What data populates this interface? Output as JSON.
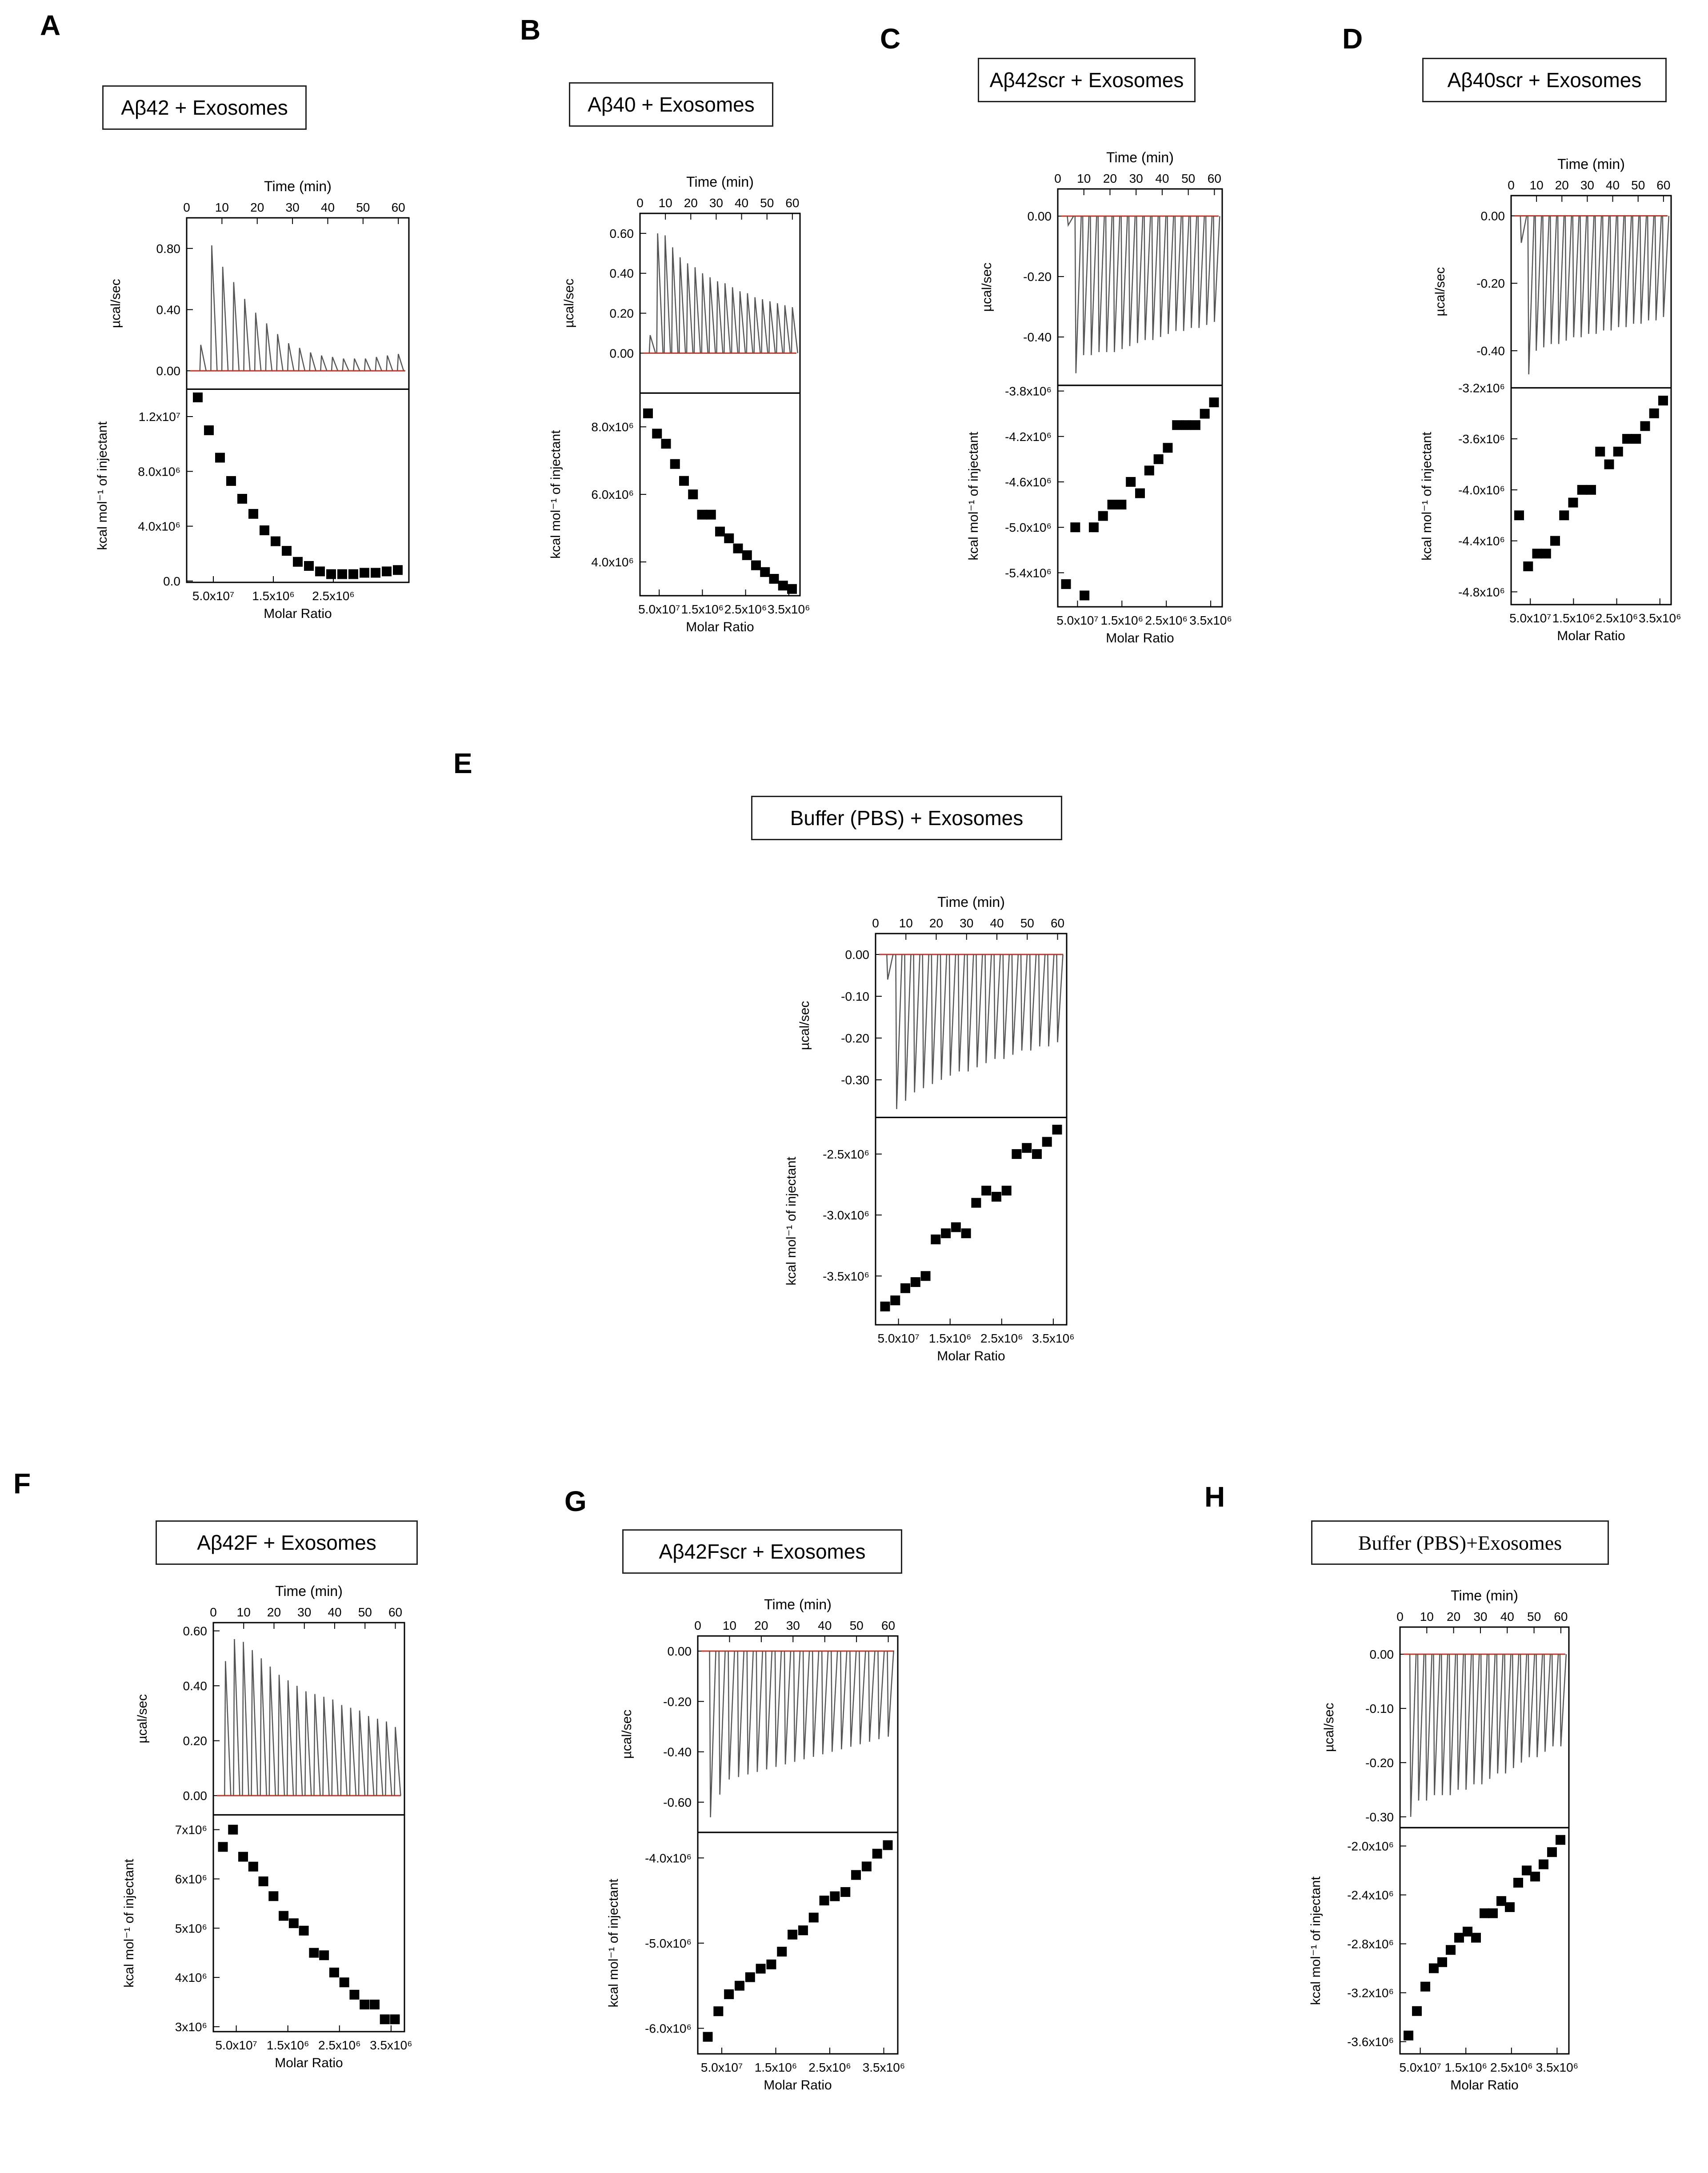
{
  "chart_data": [
    {
      "type": "scatter",
      "letter": "A",
      "title": "Aβ42 + Exosomes",
      "time_label": "Time (min)",
      "time_ticks": [
        "0",
        "10",
        "20",
        "30",
        "40",
        "50",
        "60"
      ],
      "raw_ylabel": "µcal/sec",
      "raw_ylim": [
        -0.12,
        1.0
      ],
      "raw_ticks": [
        0.0,
        0.4,
        0.8
      ],
      "raw_tick_labels": [
        "0.00",
        "0.40",
        "0.80"
      ],
      "raw_peaks": [
        0.17,
        0.82,
        0.68,
        0.58,
        0.47,
        0.38,
        0.31,
        0.24,
        0.18,
        0.15,
        0.12,
        0.1,
        0.09,
        0.08,
        0.08,
        0.08,
        0.09,
        0.1,
        0.11
      ],
      "xlabel": "Molar Ratio",
      "x_tick_labels": [
        "5.0x10⁷",
        "1.5x10⁶",
        "2.5x10⁶"
      ],
      "ylabel": "kcal mol⁻¹ of injectant",
      "ylim": [
        -100000,
        14000000
      ],
      "y_ticks": [
        0,
        4000000,
        8000000,
        12000000
      ],
      "y_tick_labels": [
        "0.0",
        "4.0x10⁶",
        "8.0x10⁶",
        "1.2x10⁷"
      ],
      "values": [
        13400000,
        11000000,
        9000000,
        7300000,
        6000000,
        4900000,
        3700000,
        2900000,
        2200000,
        1400000,
        1100000,
        700000,
        500000,
        500000,
        500000,
        600000,
        600000,
        700000,
        800000
      ]
    },
    {
      "type": "scatter",
      "letter": "B",
      "title": "Aβ40 + Exosomes",
      "time_label": "Time (min)",
      "time_ticks": [
        "0",
        "10",
        "20",
        "30",
        "40",
        "50",
        "60"
      ],
      "raw_ylabel": "µcal/sec",
      "raw_ylim": [
        -0.2,
        0.7
      ],
      "raw_ticks": [
        0.0,
        0.2,
        0.4,
        0.6
      ],
      "raw_tick_labels": [
        "0.00",
        "0.20",
        "0.40",
        "0.60"
      ],
      "raw_peaks": [
        0.09,
        0.6,
        0.59,
        0.53,
        0.48,
        0.45,
        0.43,
        0.4,
        0.38,
        0.36,
        0.35,
        0.33,
        0.31,
        0.3,
        0.28,
        0.27,
        0.26,
        0.25,
        0.24,
        0.23
      ],
      "xlabel": "Molar Ratio",
      "x_tick_labels": [
        "5.0x10⁷",
        "1.5x10⁶",
        "2.5x10⁶",
        "3.5x10⁶"
      ],
      "ylabel": "kcal mol⁻¹ of injectant",
      "ylim": [
        3000000,
        9000000
      ],
      "y_ticks": [
        4000000,
        6000000,
        8000000
      ],
      "y_tick_labels": [
        "4.0x10⁶",
        "6.0x10⁶",
        "8.0x10⁶"
      ],
      "values": [
        8400000,
        7800000,
        7500000,
        6900000,
        6400000,
        6000000,
        5400000,
        5400000,
        4900000,
        4700000,
        4400000,
        4200000,
        3900000,
        3700000,
        3500000,
        3300000,
        3200000
      ]
    },
    {
      "type": "scatter",
      "letter": "C",
      "title": "Aβ42scr + Exosomes",
      "time_label": "Time (min)",
      "time_ticks": [
        "0",
        "10",
        "20",
        "30",
        "40",
        "50",
        "60"
      ],
      "raw_ylabel": "µcal/sec",
      "raw_ylim": [
        -0.56,
        0.09
      ],
      "raw_ticks": [
        0.0,
        -0.2,
        -0.4
      ],
      "raw_tick_labels": [
        "0.00",
        "-0.20",
        "-0.40"
      ],
      "raw_peaks": [
        -0.03,
        -0.52,
        -0.46,
        -0.46,
        -0.45,
        -0.45,
        -0.45,
        -0.44,
        -0.43,
        -0.42,
        -0.41,
        -0.41,
        -0.4,
        -0.39,
        -0.38,
        -0.38,
        -0.37,
        -0.37,
        -0.36,
        -0.35
      ],
      "xlabel": "Molar Ratio",
      "x_tick_labels": [
        "5.0x10⁷",
        "1.5x10⁶",
        "2.5x10⁶",
        "3.5x10⁶"
      ],
      "ylabel": "kcal mol⁻¹ of injectant",
      "ylim": [
        -5700000,
        -3750000
      ],
      "y_ticks": [
        -5400000,
        -5000000,
        -4600000,
        -4200000,
        -3800000
      ],
      "y_tick_labels": [
        "-5.4x10⁶",
        "-5.0x10⁶",
        "-4.6x10⁶",
        "-4.2x10⁶",
        "-3.8x10⁶"
      ],
      "values": [
        -5500000,
        -5000000,
        -5600000,
        -5000000,
        -4900000,
        -4800000,
        -4800000,
        -4600000,
        -4700000,
        -4500000,
        -4400000,
        -4300000,
        -4100000,
        -4100000,
        -4100000,
        -4000000,
        -3900000
      ]
    },
    {
      "type": "scatter",
      "letter": "D",
      "title": "Aβ40scr + Exosomes",
      "time_label": "Time (min)",
      "time_ticks": [
        "0",
        "10",
        "20",
        "30",
        "40",
        "50",
        "60"
      ],
      "raw_ylabel": "µcal/sec",
      "raw_ylim": [
        -0.51,
        0.06
      ],
      "raw_ticks": [
        0.0,
        -0.2,
        -0.4
      ],
      "raw_tick_labels": [
        "0.00",
        "-0.20",
        "-0.40"
      ],
      "raw_peaks": [
        -0.08,
        -0.47,
        -0.4,
        -0.39,
        -0.38,
        -0.38,
        -0.37,
        -0.36,
        -0.36,
        -0.35,
        -0.35,
        -0.34,
        -0.34,
        -0.33,
        -0.33,
        -0.32,
        -0.32,
        -0.31,
        -0.31,
        -0.3
      ],
      "xlabel": "Molar Ratio",
      "x_tick_labels": [
        "5.0x10⁷",
        "1.5x10⁶",
        "2.5x10⁶",
        "3.5x10⁶"
      ],
      "ylabel": "kcal mol⁻¹ of injectant",
      "ylim": [
        -4900000,
        -3200000
      ],
      "y_ticks": [
        -4800000,
        -4400000,
        -4000000,
        -3600000,
        -3200000
      ],
      "y_tick_labels": [
        "-4.8x10⁶",
        "-4.4x10⁶",
        "-4.0x10⁶",
        "-3.6x10⁶",
        "-3.2x10⁶"
      ],
      "values": [
        -4200000,
        -4600000,
        -4500000,
        -4500000,
        -4400000,
        -4200000,
        -4100000,
        -4000000,
        -4000000,
        -3700000,
        -3800000,
        -3700000,
        -3600000,
        -3600000,
        -3500000,
        -3400000,
        -3300000
      ]
    },
    {
      "type": "scatter",
      "letter": "E",
      "title": "Buffer (PBS) + Exosomes",
      "time_label": "Time (min)",
      "time_ticks": [
        "0",
        "10",
        "20",
        "30",
        "40",
        "50",
        "60"
      ],
      "raw_ylabel": "µcal/sec",
      "raw_ylim": [
        -0.39,
        0.05
      ],
      "raw_ticks": [
        0.0,
        -0.1,
        -0.2,
        -0.3
      ],
      "raw_tick_labels": [
        "0.00",
        "-0.10",
        "-0.20",
        "-0.30"
      ],
      "raw_peaks": [
        -0.06,
        -0.37,
        -0.35,
        -0.33,
        -0.32,
        -0.31,
        -0.3,
        -0.29,
        -0.28,
        -0.28,
        -0.27,
        -0.26,
        -0.25,
        -0.25,
        -0.24,
        -0.23,
        -0.23,
        -0.22,
        -0.22,
        -0.21
      ],
      "xlabel": "Molar Ratio",
      "x_tick_labels": [
        "5.0x10⁷",
        "1.5x10⁶",
        "2.5x10⁶",
        "3.5x10⁶"
      ],
      "ylabel": "kcal mol⁻¹ of injectant",
      "ylim": [
        -3900000,
        -2200000
      ],
      "y_ticks": [
        -3500000,
        -3000000,
        -2500000
      ],
      "y_tick_labels": [
        "-3.5x10⁶",
        "-3.0x10⁶",
        "-2.5x10⁶"
      ],
      "values": [
        -3750000,
        -3700000,
        -3600000,
        -3550000,
        -3500000,
        -3200000,
        -3150000,
        -3100000,
        -3150000,
        -2900000,
        -2800000,
        -2850000,
        -2800000,
        -2500000,
        -2450000,
        -2500000,
        -2400000,
        -2300000
      ]
    },
    {
      "type": "scatter",
      "letter": "F",
      "title": "Aβ42F + Exosomes",
      "time_label": "Time (min)",
      "time_ticks": [
        "0",
        "10",
        "20",
        "30",
        "40",
        "50",
        "60"
      ],
      "raw_ylabel": "µcal/sec",
      "raw_ylim": [
        -0.07,
        0.63
      ],
      "raw_ticks": [
        0.0,
        0.2,
        0.4,
        0.6
      ],
      "raw_tick_labels": [
        "0.00",
        "0.20",
        "0.40",
        "0.60"
      ],
      "raw_peaks": [
        0.49,
        0.57,
        0.56,
        0.53,
        0.5,
        0.47,
        0.44,
        0.42,
        0.4,
        0.38,
        0.37,
        0.36,
        0.35,
        0.33,
        0.32,
        0.31,
        0.29,
        0.28,
        0.27,
        0.25
      ],
      "xlabel": "Molar Ratio",
      "x_tick_labels": [
        "5.0x10⁷",
        "1.5x10⁶",
        "2.5x10⁶",
        "3.5x10⁶"
      ],
      "ylabel": "kcal mol⁻¹ of injectant",
      "ylim": [
        2900000,
        7300000
      ],
      "y_ticks": [
        3000000,
        4000000,
        5000000,
        6000000,
        7000000
      ],
      "y_tick_labels": [
        "3x10⁶",
        "4x10⁶",
        "5x10⁶",
        "6x10⁶",
        "7x10⁶"
      ],
      "values": [
        6650000,
        7000000,
        6450000,
        6250000,
        5950000,
        5650000,
        5250000,
        5100000,
        4950000,
        4500000,
        4450000,
        4100000,
        3900000,
        3650000,
        3450000,
        3450000,
        3150000,
        3150000
      ]
    },
    {
      "type": "scatter",
      "letter": "G",
      "title": "Aβ42Fscr + Exosomes",
      "time_label": "Time (min)",
      "time_ticks": [
        "0",
        "10",
        "20",
        "30",
        "40",
        "50",
        "60"
      ],
      "raw_ylabel": "µcal/sec",
      "raw_ylim": [
        -0.72,
        0.06
      ],
      "raw_ticks": [
        0.0,
        -0.2,
        -0.4,
        -0.6
      ],
      "raw_tick_labels": [
        "0.00",
        "-0.20",
        "-0.40",
        "-0.60"
      ],
      "raw_peaks": [
        -0.66,
        -0.57,
        -0.51,
        -0.5,
        -0.49,
        -0.48,
        -0.47,
        -0.46,
        -0.45,
        -0.44,
        -0.43,
        -0.42,
        -0.41,
        -0.4,
        -0.39,
        -0.38,
        -0.37,
        -0.36,
        -0.35,
        -0.34
      ],
      "xlabel": "Molar Ratio",
      "x_tick_labels": [
        "5.0x10⁷",
        "1.5x10⁶",
        "2.5x10⁶",
        "3.5x10⁶"
      ],
      "ylabel": "kcal mol⁻¹ of injectant",
      "ylim": [
        -6300000,
        -3700000
      ],
      "y_ticks": [
        -6000000,
        -5000000,
        -4000000
      ],
      "y_tick_labels": [
        "-6.0x10⁶",
        "-5.0x10⁶",
        "-4.0x10⁶"
      ],
      "values": [
        -6100000,
        -5800000,
        -5600000,
        -5500000,
        -5400000,
        -5300000,
        -5250000,
        -5100000,
        -4900000,
        -4850000,
        -4700000,
        -4500000,
        -4450000,
        -4400000,
        -4200000,
        -4100000,
        -3950000,
        -3850000
      ]
    },
    {
      "type": "scatter",
      "letter": "H",
      "title": "Buffer (PBS)+Exosomes",
      "time_label": "Time (min)",
      "time_ticks": [
        "0",
        "10",
        "20",
        "30",
        "40",
        "50",
        "60"
      ],
      "raw_ylabel": "µcal/sec",
      "raw_ylim": [
        -0.32,
        0.05
      ],
      "raw_ticks": [
        0.0,
        -0.1,
        -0.2,
        -0.3
      ],
      "raw_tick_labels": [
        "0.00",
        "-0.10",
        "-0.20",
        "-0.30"
      ],
      "raw_peaks": [
        -0.3,
        -0.27,
        -0.27,
        -0.26,
        -0.26,
        -0.26,
        -0.25,
        -0.25,
        -0.24,
        -0.24,
        -0.23,
        -0.22,
        -0.22,
        -0.21,
        -0.2,
        -0.19,
        -0.19,
        -0.18,
        -0.17,
        -0.17
      ],
      "xlabel": "Molar Ratio",
      "x_tick_labels": [
        "5.0x10⁷",
        "1.5x10⁶",
        "2.5x10⁶",
        "3.5x10⁶"
      ],
      "ylabel": "kcal mol⁻¹ of injectant",
      "ylim": [
        -3700000,
        -1850000
      ],
      "y_ticks": [
        -3600000,
        -3200000,
        -2800000,
        -2400000,
        -2000000
      ],
      "y_tick_labels": [
        "-3.6x10⁶",
        "-3.2x10⁶",
        "-2.8x10⁶",
        "-2.4x10⁶",
        "-2.0x10⁶"
      ],
      "values": [
        -3550000,
        -3350000,
        -3150000,
        -3000000,
        -2950000,
        -2850000,
        -2750000,
        -2700000,
        -2750000,
        -2550000,
        -2550000,
        -2450000,
        -2500000,
        -2300000,
        -2200000,
        -2250000,
        -2150000,
        -2050000,
        -1950000
      ]
    }
  ]
}
